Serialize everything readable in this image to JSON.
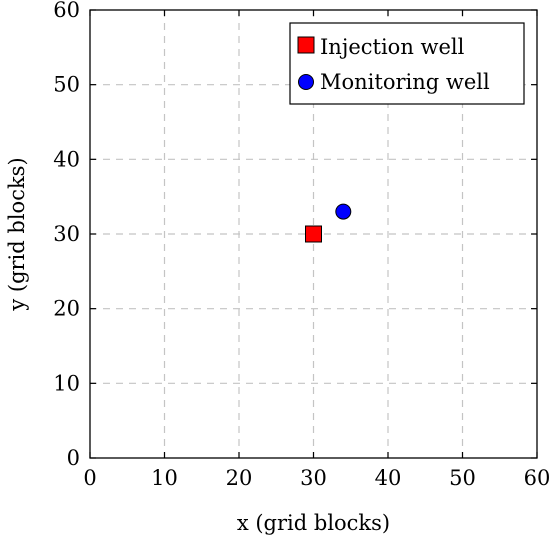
{
  "chart_data": {
    "type": "scatter",
    "xlabel": "x (grid blocks)",
    "ylabel": "y (grid blocks)",
    "xlim": [
      0,
      60
    ],
    "ylim": [
      0,
      60
    ],
    "xticks": [
      "0",
      "10",
      "20",
      "30",
      "40",
      "50",
      "60"
    ],
    "yticks": [
      "0",
      "10",
      "20",
      "30",
      "40",
      "50",
      "60"
    ],
    "grid": true,
    "legend_position": "top-right",
    "series": [
      {
        "name": "Injection well",
        "marker": "square",
        "color": "#ff0000",
        "points": [
          {
            "x": 30,
            "y": 30
          }
        ]
      },
      {
        "name": "Monitoring well",
        "marker": "circle",
        "color": "#0000ff",
        "points": [
          {
            "x": 34,
            "y": 33
          }
        ]
      }
    ]
  }
}
